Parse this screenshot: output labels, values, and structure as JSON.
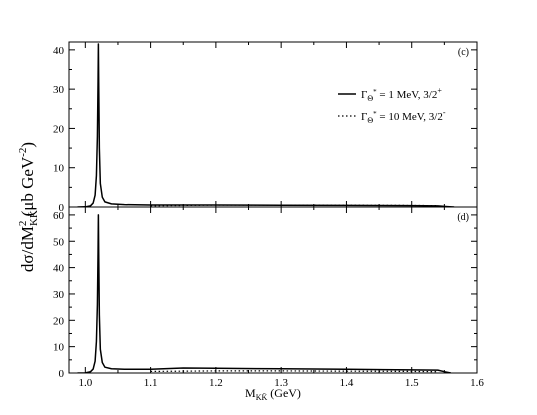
{
  "chart_data": {
    "type": "line",
    "x_range": [
      0.975,
      1.6
    ],
    "x_ticks": [
      "1.0",
      "1.1",
      "1.2",
      "1.3",
      "1.4",
      "1.5",
      "1.6"
    ],
    "x_tick_values": [
      1.0,
      1.1,
      1.2,
      1.3,
      1.4,
      1.5,
      1.6
    ],
    "xlabel": {
      "main": "M",
      "sub": "KK̄",
      "unit": " (GeV)"
    },
    "ylabel": {
      "prefix": "dσ/dM",
      "sub": "KK̄",
      "sup": "2",
      "unit": " (μb GeV",
      "unit_sup": "-2",
      "suffix": ")"
    },
    "legend_position": "top-right",
    "legend": [
      {
        "style": "solid",
        "symbol": "Γ",
        "sub": "Θ",
        "sub2": "*",
        "text": " = 1 MeV, 3/2",
        "sup": "+"
      },
      {
        "style": "dotted",
        "symbol": "Γ",
        "sub": "Θ",
        "sub2": "*",
        "text": " = 10 MeV, 3/2",
        "sup": "-"
      }
    ],
    "panels": [
      {
        "id": "c",
        "panel_label": "(c)",
        "ylim": [
          0,
          42
        ],
        "y_ticks": [
          "0",
          "10",
          "20",
          "30",
          "40"
        ],
        "y_tick_values": [
          0,
          10,
          20,
          30,
          40
        ],
        "series": [
          {
            "style": "solid",
            "x": [
              0.988,
              1.0,
              1.008,
              1.012,
              1.015,
              1.017,
              1.0185,
              1.0195,
              1.02,
              1.0205,
              1.0215,
              1.023,
              1.026,
              1.03,
              1.04,
              1.06,
              1.1,
              1.2,
              1.3,
              1.4,
              1.5,
              1.54,
              1.555,
              1.565
            ],
            "y": [
              0,
              0.05,
              0.3,
              1.0,
              3.0,
              8.0,
              18.0,
              32.0,
              41.5,
              32.0,
              15.0,
              6.0,
              2.5,
              1.3,
              0.8,
              0.6,
              0.5,
              0.5,
              0.45,
              0.4,
              0.35,
              0.3,
              0.1,
              0
            ]
          },
          {
            "style": "dotted",
            "x": [
              1.1,
              1.2,
              1.3,
              1.4,
              1.5,
              1.54
            ],
            "y": [
              0.3,
              0.5,
              0.5,
              0.45,
              0.4,
              0.35
            ]
          }
        ]
      },
      {
        "id": "d",
        "panel_label": "(d)",
        "ylim": [
          0,
          63
        ],
        "y_ticks": [
          "0",
          "10",
          "20",
          "30",
          "40",
          "50",
          "60"
        ],
        "y_tick_values": [
          0,
          10,
          20,
          30,
          40,
          50,
          60
        ],
        "series": [
          {
            "style": "solid",
            "x": [
              0.988,
              1.0,
              1.008,
              1.012,
              1.015,
              1.017,
              1.0185,
              1.0195,
              1.02,
              1.0205,
              1.0215,
              1.023,
              1.026,
              1.03,
              1.04,
              1.06,
              1.1,
              1.15,
              1.2,
              1.3,
              1.4,
              1.5,
              1.54,
              1.55,
              1.56
            ],
            "y": [
              0,
              0.05,
              0.5,
              1.5,
              4.5,
              12.0,
              26.0,
              46.0,
              60.0,
              46.0,
              22.0,
              9.0,
              4.0,
              2.2,
              1.6,
              1.4,
              1.4,
              1.9,
              1.8,
              1.6,
              1.4,
              1.2,
              1.1,
              0.5,
              0
            ]
          },
          {
            "style": "dotted",
            "x": [
              1.1,
              1.2,
              1.3,
              1.4,
              1.5,
              1.54
            ],
            "y": [
              0.6,
              0.8,
              0.8,
              0.7,
              0.6,
              0.5
            ]
          }
        ]
      }
    ]
  }
}
